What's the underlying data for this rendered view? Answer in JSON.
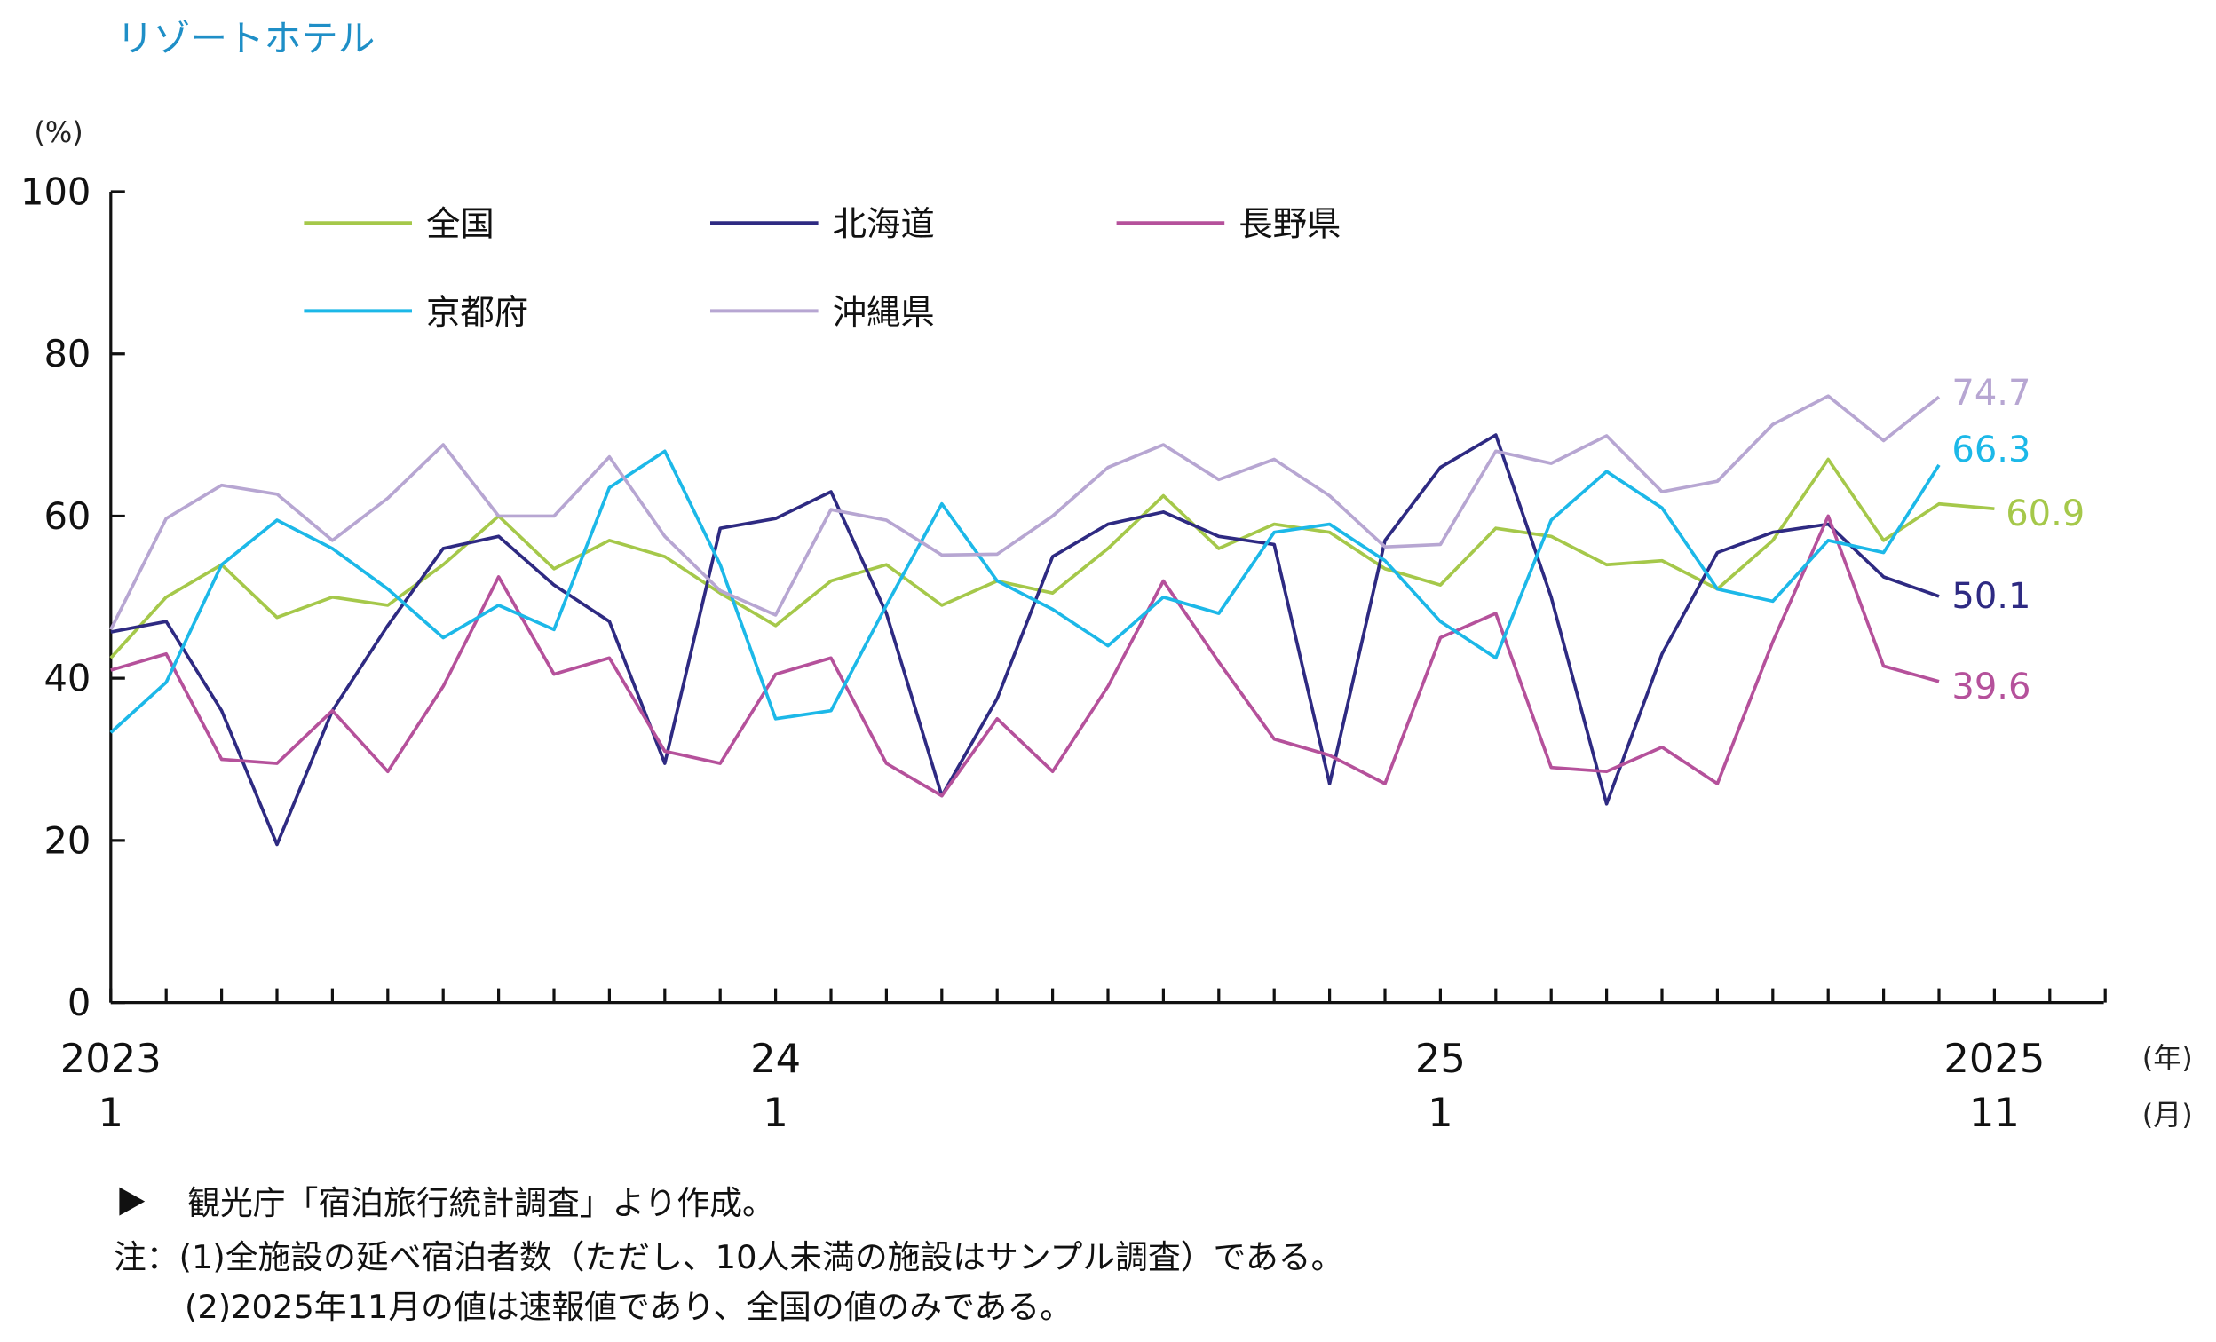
{
  "title": "リゾートホテル",
  "notes": {
    "source": "観光庁「宿泊旅行統計調査」より作成。",
    "note1": "注：(1)全施設の延べ宿泊者数（ただし、10人未満の施設はサンプル調査）である。",
    "note2": "(2)2025年11月の値は速報値であり、全国の値のみである。"
  },
  "chart_data": {
    "type": "line",
    "title": "リゾートホテル",
    "ylabel": "(%)",
    "ylim": [
      0,
      100
    ],
    "yticks": [
      "0",
      "20",
      "40",
      "60",
      "80",
      "100"
    ],
    "x_start": "2023-01",
    "x_end": "2025-11",
    "xtick_labels": [
      {
        "month_index": 0,
        "year": "2023",
        "month": "1"
      },
      {
        "month_index": 12,
        "year": "24",
        "month": "1"
      },
      {
        "month_index": 24,
        "year": "25",
        "month": "1"
      },
      {
        "month_index": 34,
        "year": "2025",
        "month": "11"
      }
    ],
    "x_unit_year": "(年)",
    "x_unit_month": "(月)",
    "grid": false,
    "legend_position": "top-left",
    "series": [
      {
        "name": "全国",
        "color": "#a5c84a",
        "end_label": "60.9",
        "values": [
          42.5,
          50,
          54,
          47.5,
          50,
          49,
          54,
          60,
          53.5,
          57,
          55,
          50.5,
          46.5,
          52,
          54,
          49,
          52,
          50.5,
          56,
          62.5,
          56,
          59,
          58,
          53.5,
          51.5,
          58.5,
          57.5,
          54,
          54.5,
          51,
          57,
          67,
          57,
          61.5,
          60.9
        ]
      },
      {
        "name": "北海道",
        "color": "#2e2a82",
        "end_label": "50.1",
        "values": [
          45.7,
          47,
          36,
          19.5,
          36,
          46.5,
          56,
          57.5,
          51.5,
          47,
          29.5,
          58.5,
          59.7,
          63,
          48,
          25.5,
          37.5,
          55,
          59,
          60.5,
          57.5,
          56.5,
          27,
          57,
          66,
          70,
          50,
          24.5,
          43,
          55.5,
          58,
          59,
          52.5,
          50.1
        ]
      },
      {
        "name": "長野県",
        "color": "#b5519b",
        "end_label": "39.6",
        "values": [
          41,
          43,
          30,
          29.5,
          36,
          28.5,
          39,
          52.5,
          40.5,
          42.5,
          31,
          29.5,
          40.5,
          42.5,
          29.5,
          25.5,
          35,
          28.5,
          39,
          52,
          42,
          32.5,
          30.5,
          27,
          45,
          48,
          29,
          28.5,
          31.5,
          27,
          44.5,
          60,
          41.5,
          39.6
        ]
      },
      {
        "name": "京都府",
        "color": "#1cb8e8",
        "end_label": "66.3",
        "values": [
          33.3,
          39.5,
          54,
          59.5,
          56,
          51,
          45,
          49,
          46,
          63.5,
          68,
          54,
          35,
          36,
          49,
          61.5,
          52,
          48.5,
          44,
          50,
          48,
          58,
          59,
          54.5,
          47,
          42.5,
          59.5,
          65.5,
          61,
          51,
          49.5,
          57,
          55.5,
          66.3
        ]
      },
      {
        "name": "沖縄県",
        "color": "#b7a6d2",
        "end_label": "74.7",
        "values": [
          46,
          59.7,
          63.8,
          62.7,
          57,
          62.2,
          68.8,
          60,
          60,
          67.3,
          57.5,
          50.8,
          47.8,
          60.8,
          59.5,
          55.2,
          55.3,
          60,
          66,
          68.8,
          64.5,
          67,
          62.5,
          56.2,
          56.5,
          68,
          66.5,
          69.9,
          63,
          64.3,
          71.3,
          74.8,
          69.3,
          74.7
        ]
      }
    ]
  }
}
